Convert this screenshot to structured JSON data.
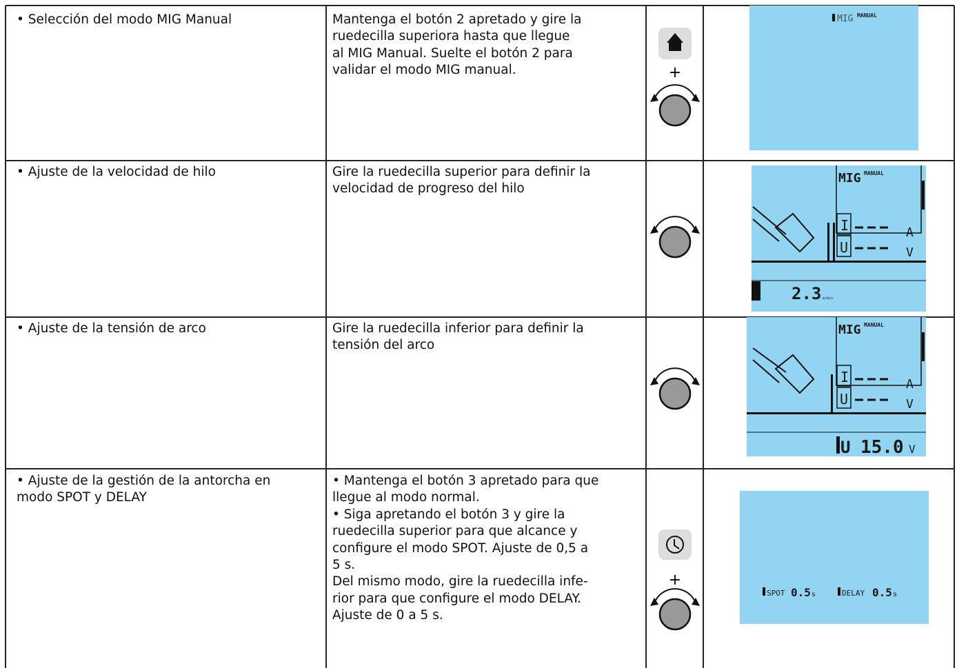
{
  "rows": [
    {
      "step": [
        "• Selección del modo MIG Manual"
      ],
      "instructions": [
        "Mantenga el botón 2 apretado y gire la",
        "ruedecilla superiora hasta que llegue",
        "al MIG Manual. Suelte el botón 2 para",
        "validar el modo MIG manual."
      ],
      "plus": "+",
      "display": {
        "mode": "MIG",
        "mode_sub": "MANUAL"
      }
    },
    {
      "step": [
        "• Ajuste de la velocidad de hilo"
      ],
      "instructions": [
        "Gire la ruedecilla superior para definir la",
        "velocidad de progreso del hilo"
      ],
      "display": {
        "mode": "MIG",
        "mode_sub": "MANUAL",
        "current": "I",
        "current_unit": "A",
        "voltage": "U",
        "voltage_unit": "V",
        "reading": "2.3",
        "reading_unit": "m/min"
      }
    },
    {
      "step": [
        "• Ajuste de la tensión de arco"
      ],
      "instructions": [
        "Gire la ruedecilla inferior para definir la",
        "tensión del arco"
      ],
      "display": {
        "mode": "MIG",
        "mode_sub": "MANUAL",
        "current": "I",
        "current_unit": "A",
        "voltage": "U",
        "voltage_unit": "V",
        "reading_symbol": "U",
        "reading": "15.0",
        "reading_unit": "V"
      }
    },
    {
      "step": [
        "• Ajuste de la gestión de la antorcha en",
        "modo SPOT y DELAY"
      ],
      "instructions": [
        "• Mantenga el botón 3 apretado para que",
        "llegue al modo normal.",
        "• Siga apretando el botón 3 y gire la",
        "ruedecilla superior para que alcance y",
        "configure el modo SPOT. Ajuste de 0,5 a",
        "5 s.",
        "Del mismo modo, gire la ruedecilla infe-",
        "rior para que configure el modo DELAY.",
        "Ajuste de 0 a 5 s."
      ],
      "plus": "+",
      "display": {
        "spot": "SPOT",
        "spot_value": "0.5",
        "spot_unit": "s",
        "delay": "DELAY",
        "delay_value": "0.5",
        "delay_unit": "s"
      }
    }
  ]
}
